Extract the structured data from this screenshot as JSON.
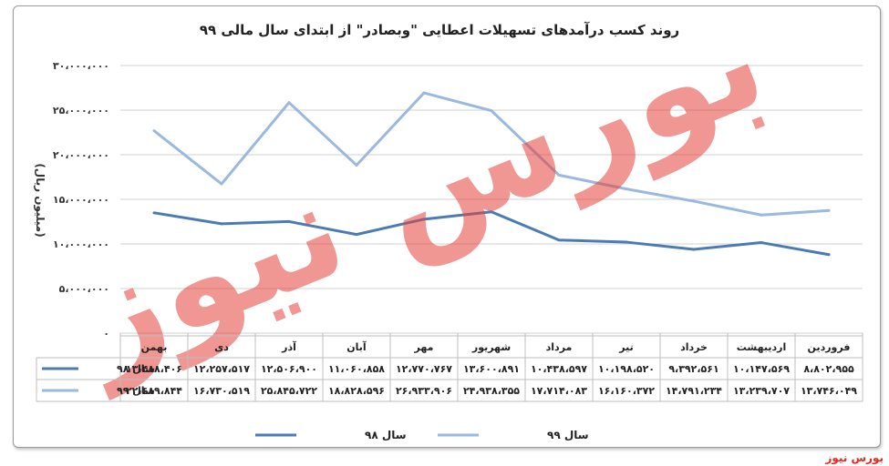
{
  "chart_data": {
    "type": "line",
    "title": "روند کسب درآمدهای تسهیلات اعطایی \"وبصادر\" از ابتدای سال مالی ۹۹",
    "ylabel": "(میلیون ریال)",
    "xlabel": "",
    "ylim": [
      0,
      30000000
    ],
    "y_ticks": [
      0,
      5000000,
      10000000,
      15000000,
      20000000,
      25000000,
      30000000
    ],
    "y_tick_labels": [
      "۰",
      "۵،۰۰۰،۰۰۰",
      "۱۰،۰۰۰،۰۰۰",
      "۱۵،۰۰۰،۰۰۰",
      "۲۰،۰۰۰،۰۰۰",
      "۲۵،۰۰۰،۰۰۰",
      "۳۰،۰۰۰،۰۰۰"
    ],
    "categories": [
      "فروردین",
      "اردیبهشت",
      "خرداد",
      "تیر",
      "مرداد",
      "شهریور",
      "مهر",
      "آبان",
      "آذر",
      "دی",
      "بهمن"
    ],
    "grid": true,
    "legend": "bottom",
    "data_table": true,
    "series": [
      {
        "name": "سال ۹۸",
        "color": "#4a7bb5",
        "values": [
          8802955,
          10147569,
          9392561,
          10198520,
          10438597,
          13600891,
          12770767,
          11060858,
          12506900,
          12257517,
          13488406
        ],
        "labels": [
          "۸،۸۰۲،۹۵۵",
          "۱۰،۱۴۷،۵۶۹",
          "۹،۳۹۲،۵۶۱",
          "۱۰،۱۹۸،۵۲۰",
          "۱۰،۴۳۸،۵۹۷",
          "۱۳،۶۰۰،۸۹۱",
          "۱۲،۷۷۰،۷۶۷",
          "۱۱،۰۶۰،۸۵۸",
          "۱۲،۵۰۶،۹۰۰",
          "۱۲،۲۵۷،۵۱۷",
          "۱۳،۴۸۸،۴۰۶"
        ]
      },
      {
        "name": "سال ۹۹",
        "color": "#9ab8e0",
        "values": [
          13746049,
          13239707,
          14791234,
          16160372,
          17714083,
          24938355,
          26933906,
          18828596,
          25845722,
          16730519,
          22689844
        ],
        "labels": [
          "۱۳،۷۴۶،۰۴۹",
          "۱۳،۲۳۹،۷۰۷",
          "۱۴،۷۹۱،۲۳۴",
          "۱۶،۱۶۰،۳۷۲",
          "۱۷،۷۱۴،۰۸۳",
          "۲۴،۹۳۸،۳۵۵",
          "۲۶،۹۳۳،۹۰۶",
          "۱۸،۸۲۸،۵۹۶",
          "۲۵،۸۴۵،۷۲۲",
          "۱۶،۷۳۰،۵۱۹",
          "۲۲،۶۸۹،۸۴۴"
        ]
      }
    ]
  },
  "watermark": "بورس نیوز",
  "brand": "بورس نیوز"
}
